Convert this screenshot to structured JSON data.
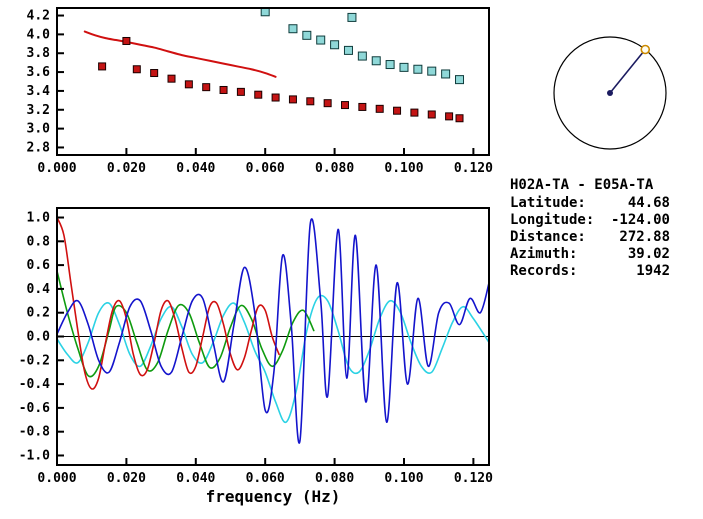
{
  "info": {
    "title": "H02A-TA - E05A-TA",
    "fields": [
      {
        "label": "Latitude:",
        "value": "44.68"
      },
      {
        "label": "Longitude:",
        "value": "-124.00"
      },
      {
        "label": "Distance:",
        "value": "272.88"
      },
      {
        "label": "Azimuth:",
        "value": "39.02"
      },
      {
        "label": "Records:",
        "value": "1942"
      }
    ]
  },
  "azimuth_dial": {
    "azimuth_deg": 39.02,
    "circle_color": "#000000",
    "line_color": "#1b1b60",
    "center_color": "#1b1b60",
    "marker_color": "#cc8a00"
  },
  "chart_data": [
    {
      "id": "dispersion",
      "type": "line",
      "title": "",
      "xlabel": "",
      "ylabel": "",
      "xlim": [
        0,
        0.1245
      ],
      "ylim": [
        2.72,
        4.28
      ],
      "xticks": [
        0.0,
        0.02,
        0.04,
        0.06,
        0.08,
        0.1,
        0.12
      ],
      "xtick_labels": [
        "0.000",
        "0.020",
        "0.040",
        "0.060",
        "0.080",
        "0.100",
        "0.120"
      ],
      "yticks": [
        2.8,
        3.0,
        3.2,
        3.4,
        3.6,
        3.8,
        4.0,
        4.2
      ],
      "ytick_labels": [
        "2.8",
        "3.0",
        "3.2",
        "3.4",
        "3.6",
        "3.8",
        "4.0",
        "4.2"
      ],
      "grid": false,
      "zero_line": false,
      "series": [
        {
          "name": "phase-velocity-curve",
          "type": "line",
          "color": "#d01010",
          "width": 2,
          "points": [
            [
              0.008,
              4.03
            ],
            [
              0.011,
              3.99
            ],
            [
              0.014,
              3.96
            ],
            [
              0.017,
              3.94
            ],
            [
              0.02,
              3.92
            ],
            [
              0.024,
              3.89
            ],
            [
              0.028,
              3.86
            ],
            [
              0.032,
              3.82
            ],
            [
              0.036,
              3.78
            ],
            [
              0.04,
              3.75
            ],
            [
              0.044,
              3.72
            ],
            [
              0.048,
              3.69
            ],
            [
              0.052,
              3.66
            ],
            [
              0.056,
              3.63
            ],
            [
              0.06,
              3.59
            ],
            [
              0.063,
              3.55
            ]
          ]
        },
        {
          "name": "group-velocity-measured",
          "type": "squares",
          "color": "#c41414",
          "edge": "#1a0000",
          "size": 7,
          "points": [
            [
              0.013,
              3.66
            ],
            [
              0.02,
              3.93
            ],
            [
              0.023,
              3.63
            ],
            [
              0.028,
              3.59
            ],
            [
              0.033,
              3.53
            ],
            [
              0.038,
              3.47
            ],
            [
              0.043,
              3.44
            ],
            [
              0.048,
              3.41
            ],
            [
              0.053,
              3.39
            ],
            [
              0.058,
              3.36
            ],
            [
              0.063,
              3.33
            ],
            [
              0.068,
              3.31
            ],
            [
              0.073,
              3.29
            ],
            [
              0.078,
              3.27
            ],
            [
              0.083,
              3.25
            ],
            [
              0.088,
              3.23
            ],
            [
              0.093,
              3.21
            ],
            [
              0.098,
              3.19
            ],
            [
              0.103,
              3.17
            ],
            [
              0.108,
              3.15
            ],
            [
              0.113,
              3.13
            ],
            [
              0.116,
              3.11
            ]
          ]
        },
        {
          "name": "phase-velocity-measured",
          "type": "squares",
          "color": "#8fd8d8",
          "edge": "#103c3c",
          "size": 8,
          "points": [
            [
              0.06,
              4.24
            ],
            [
              0.085,
              4.18
            ],
            [
              0.068,
              4.06
            ],
            [
              0.072,
              3.99
            ],
            [
              0.076,
              3.94
            ],
            [
              0.08,
              3.89
            ],
            [
              0.084,
              3.83
            ],
            [
              0.088,
              3.77
            ],
            [
              0.092,
              3.72
            ],
            [
              0.096,
              3.68
            ],
            [
              0.1,
              3.65
            ],
            [
              0.104,
              3.63
            ],
            [
              0.108,
              3.61
            ],
            [
              0.112,
              3.58
            ],
            [
              0.116,
              3.52
            ]
          ]
        }
      ]
    },
    {
      "id": "correlation",
      "type": "line",
      "title": "",
      "xlabel": "frequency (Hz)",
      "ylabel": "",
      "xlim": [
        0,
        0.1245
      ],
      "ylim": [
        -1.08,
        1.08
      ],
      "xticks": [
        0.0,
        0.02,
        0.04,
        0.06,
        0.08,
        0.1,
        0.12
      ],
      "xtick_labels": [
        "0.000",
        "0.020",
        "0.040",
        "0.060",
        "0.080",
        "0.100",
        "0.120"
      ],
      "yticks": [
        -1.0,
        -0.8,
        -0.6,
        -0.4,
        -0.2,
        0.0,
        0.2,
        0.4,
        0.6,
        0.8,
        1.0
      ],
      "ytick_labels": [
        "-1.0",
        "-0.8",
        "-0.6",
        "-0.4",
        "-0.2",
        "0.0",
        "0.2",
        "0.4",
        "0.6",
        "0.8",
        "1.0"
      ],
      "grid": false,
      "zero_line": true,
      "series": [
        {
          "name": "trace-cyan",
          "type": "line",
          "color": "#2bd2e4",
          "width": 1.6,
          "points": [
            [
              0.0,
              -0.02
            ],
            [
              0.003,
              -0.15
            ],
            [
              0.006,
              -0.22
            ],
            [
              0.009,
              -0.05
            ],
            [
              0.012,
              0.2
            ],
            [
              0.015,
              0.28
            ],
            [
              0.018,
              0.1
            ],
            [
              0.021,
              -0.15
            ],
            [
              0.024,
              -0.25
            ],
            [
              0.027,
              -0.08
            ],
            [
              0.03,
              0.15
            ],
            [
              0.033,
              0.25
            ],
            [
              0.036,
              0.08
            ],
            [
              0.039,
              -0.15
            ],
            [
              0.042,
              -0.22
            ],
            [
              0.045,
              -0.05
            ],
            [
              0.048,
              0.18
            ],
            [
              0.051,
              0.28
            ],
            [
              0.054,
              0.12
            ],
            [
              0.057,
              -0.12
            ],
            [
              0.06,
              -0.3
            ],
            [
              0.063,
              -0.55
            ],
            [
              0.066,
              -0.72
            ],
            [
              0.069,
              -0.45
            ],
            [
              0.072,
              0.05
            ],
            [
              0.075,
              0.32
            ],
            [
              0.078,
              0.3
            ],
            [
              0.081,
              0.05
            ],
            [
              0.084,
              -0.25
            ],
            [
              0.087,
              -0.3
            ],
            [
              0.09,
              -0.12
            ],
            [
              0.093,
              0.15
            ],
            [
              0.096,
              0.3
            ],
            [
              0.099,
              0.2
            ],
            [
              0.102,
              -0.05
            ],
            [
              0.105,
              -0.25
            ],
            [
              0.108,
              -0.3
            ],
            [
              0.111,
              -0.1
            ],
            [
              0.114,
              0.12
            ],
            [
              0.117,
              0.25
            ],
            [
              0.12,
              0.15
            ],
            [
              0.1245,
              -0.05
            ]
          ]
        },
        {
          "name": "trace-green",
          "type": "line",
          "color": "#0f9b0f",
          "width": 1.6,
          "points": [
            [
              0.0,
              0.55
            ],
            [
              0.003,
              0.2
            ],
            [
              0.006,
              -0.1
            ],
            [
              0.009,
              -0.33
            ],
            [
              0.012,
              -0.25
            ],
            [
              0.015,
              0.05
            ],
            [
              0.017,
              0.25
            ],
            [
              0.02,
              0.2
            ],
            [
              0.023,
              -0.05
            ],
            [
              0.026,
              -0.28
            ],
            [
              0.029,
              -0.22
            ],
            [
              0.032,
              0.05
            ],
            [
              0.035,
              0.26
            ],
            [
              0.038,
              0.2
            ],
            [
              0.041,
              -0.05
            ],
            [
              0.044,
              -0.26
            ],
            [
              0.047,
              -0.18
            ],
            [
              0.05,
              0.08
            ],
            [
              0.053,
              0.26
            ],
            [
              0.056,
              0.15
            ],
            [
              0.059,
              -0.1
            ],
            [
              0.062,
              -0.25
            ],
            [
              0.065,
              -0.12
            ],
            [
              0.068,
              0.12
            ],
            [
              0.071,
              0.22
            ],
            [
              0.074,
              0.05
            ]
          ]
        },
        {
          "name": "trace-red",
          "type": "line",
          "color": "#d01010",
          "width": 1.6,
          "points": [
            [
              0.0,
              1.0
            ],
            [
              0.002,
              0.85
            ],
            [
              0.004,
              0.45
            ],
            [
              0.006,
              0.05
            ],
            [
              0.008,
              -0.3
            ],
            [
              0.01,
              -0.44
            ],
            [
              0.012,
              -0.35
            ],
            [
              0.014,
              -0.05
            ],
            [
              0.016,
              0.22
            ],
            [
              0.018,
              0.3
            ],
            [
              0.02,
              0.15
            ],
            [
              0.022,
              -0.15
            ],
            [
              0.024,
              -0.32
            ],
            [
              0.026,
              -0.28
            ],
            [
              0.028,
              -0.05
            ],
            [
              0.03,
              0.22
            ],
            [
              0.032,
              0.3
            ],
            [
              0.034,
              0.15
            ],
            [
              0.036,
              -0.1
            ],
            [
              0.038,
              -0.3
            ],
            [
              0.04,
              -0.25
            ],
            [
              0.042,
              0.0
            ],
            [
              0.044,
              0.25
            ],
            [
              0.046,
              0.28
            ],
            [
              0.048,
              0.1
            ],
            [
              0.05,
              -0.15
            ],
            [
              0.052,
              -0.28
            ],
            [
              0.054,
              -0.18
            ],
            [
              0.056,
              0.05
            ],
            [
              0.058,
              0.25
            ],
            [
              0.06,
              0.22
            ],
            [
              0.062,
              0.0
            ],
            [
              0.064,
              -0.15
            ]
          ]
        },
        {
          "name": "trace-blue",
          "type": "line",
          "color": "#1414cc",
          "width": 1.6,
          "points": [
            [
              0.0,
              0.02
            ],
            [
              0.003,
              0.2
            ],
            [
              0.006,
              0.3
            ],
            [
              0.009,
              0.1
            ],
            [
              0.012,
              -0.2
            ],
            [
              0.015,
              -0.3
            ],
            [
              0.018,
              -0.05
            ],
            [
              0.021,
              0.25
            ],
            [
              0.024,
              0.3
            ],
            [
              0.027,
              0.05
            ],
            [
              0.03,
              -0.25
            ],
            [
              0.033,
              -0.3
            ],
            [
              0.036,
              0.0
            ],
            [
              0.039,
              0.3
            ],
            [
              0.042,
              0.32
            ],
            [
              0.045,
              -0.05
            ],
            [
              0.048,
              -0.38
            ],
            [
              0.051,
              0.1
            ],
            [
              0.054,
              0.58
            ],
            [
              0.057,
              0.2
            ],
            [
              0.06,
              -0.62
            ],
            [
              0.0625,
              -0.3
            ],
            [
              0.065,
              0.68
            ],
            [
              0.0675,
              0.1
            ],
            [
              0.07,
              -0.88
            ],
            [
              0.073,
              0.95
            ],
            [
              0.076,
              0.3
            ],
            [
              0.078,
              -0.5
            ],
            [
              0.081,
              0.9
            ],
            [
              0.0835,
              -0.35
            ],
            [
              0.086,
              0.85
            ],
            [
              0.089,
              -0.55
            ],
            [
              0.092,
              0.6
            ],
            [
              0.095,
              -0.72
            ],
            [
              0.098,
              0.45
            ],
            [
              0.101,
              -0.4
            ],
            [
              0.104,
              0.32
            ],
            [
              0.107,
              -0.25
            ],
            [
              0.11,
              0.2
            ],
            [
              0.113,
              0.28
            ],
            [
              0.116,
              0.1
            ],
            [
              0.119,
              0.32
            ],
            [
              0.122,
              0.2
            ],
            [
              0.1245,
              0.45
            ]
          ]
        }
      ]
    }
  ]
}
